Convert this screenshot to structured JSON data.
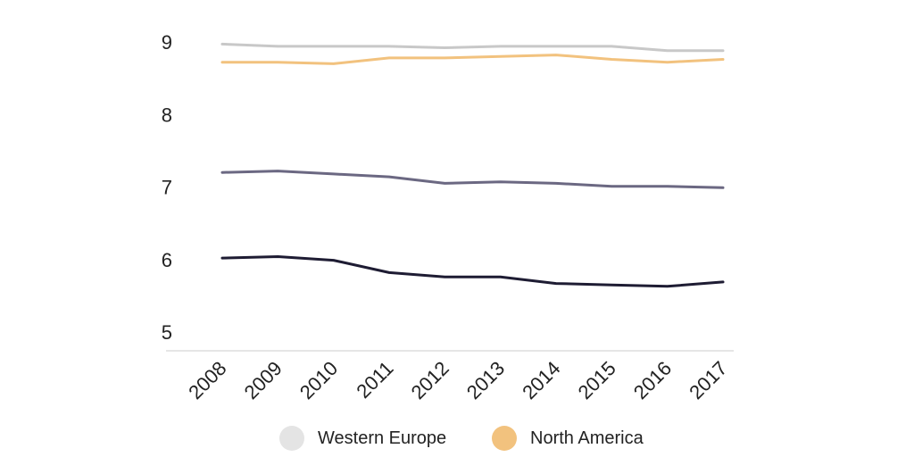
{
  "chart_data": {
    "type": "line",
    "title": "",
    "xlabel": "",
    "ylabel": "",
    "x": [
      "2008",
      "2009",
      "2010",
      "2011",
      "2012",
      "2013",
      "2014",
      "2015",
      "2016",
      "2017"
    ],
    "yticks": [
      "5",
      "6",
      "7",
      "8",
      "9"
    ],
    "ylim": [
      5,
      9
    ],
    "grid": false,
    "legend_position": "bottom",
    "series": [
      {
        "name": "Western Europe",
        "color": "#c8c8c8",
        "values": [
          8.97,
          8.94,
          8.94,
          8.94,
          8.92,
          8.94,
          8.94,
          8.94,
          8.88,
          8.88
        ]
      },
      {
        "name": "North America",
        "color": "#f2c27e",
        "values": [
          8.72,
          8.72,
          8.7,
          8.78,
          8.78,
          8.8,
          8.82,
          8.76,
          8.72,
          8.76
        ]
      },
      {
        "color": "#6b6882",
        "values": [
          7.2,
          7.22,
          7.18,
          7.14,
          7.05,
          7.07,
          7.05,
          7.01,
          7.01,
          6.99
        ]
      },
      {
        "color": "#1e1c33",
        "values": [
          6.02,
          6.04,
          5.99,
          5.82,
          5.76,
          5.76,
          5.67,
          5.65,
          5.63,
          5.69
        ]
      }
    ]
  }
}
